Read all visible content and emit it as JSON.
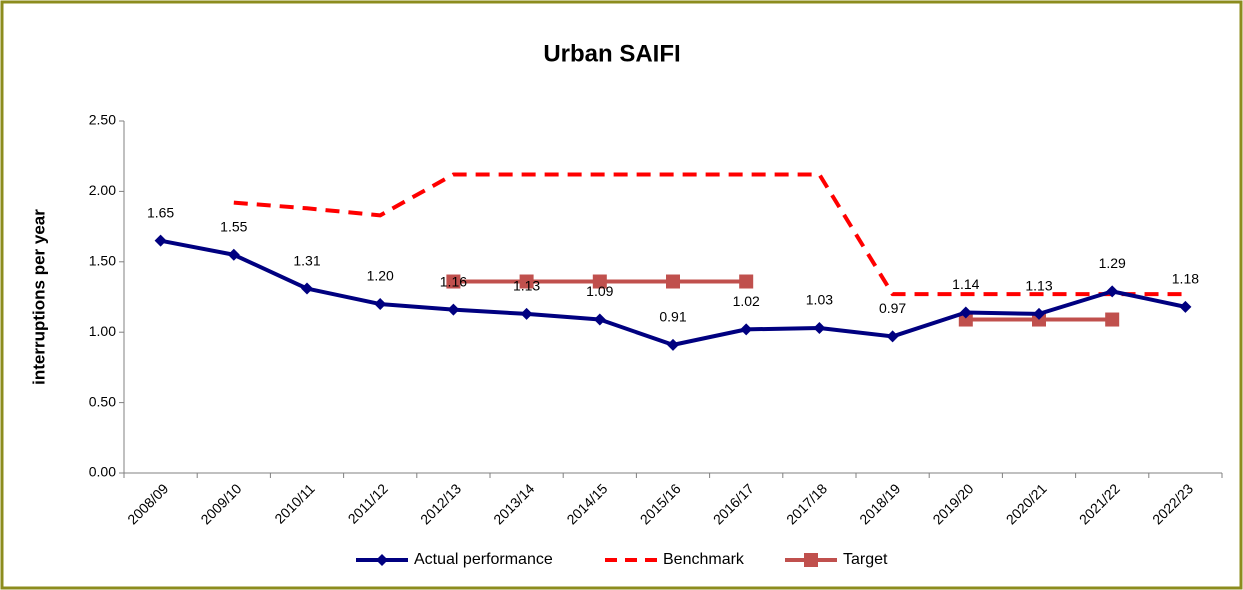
{
  "chart_data": {
    "type": "line",
    "title": "Urban SAIFI",
    "y_label": "interruptions per year",
    "categories": [
      "2008/09",
      "2009/10",
      "2010/11",
      "2011/12",
      "2012/13",
      "2013/14",
      "2014/15",
      "2015/16",
      "2016/17",
      "2017/18",
      "2018/19",
      "2019/20",
      "2020/21",
      "2021/22",
      "2022/23"
    ],
    "series": [
      {
        "name": "Actual performance",
        "color": "#000080",
        "style": "solid",
        "marker": "diamond",
        "values": [
          1.65,
          1.55,
          1.31,
          1.2,
          1.16,
          1.13,
          1.09,
          0.91,
          1.02,
          1.03,
          0.97,
          1.14,
          1.13,
          1.29,
          1.18
        ],
        "value_labels": [
          "1.65",
          "1.55",
          "1.31",
          "1.20",
          "1.16",
          "1.13",
          "1.09",
          "0.91",
          "1.02",
          "1.03",
          "0.97",
          "1.14",
          "1.13",
          "1.29",
          "1.18"
        ]
      },
      {
        "name": "Benchmark",
        "color": "#ff0000",
        "style": "dashed",
        "marker": "none",
        "values": [
          null,
          1.92,
          1.88,
          1.83,
          2.12,
          2.12,
          2.12,
          2.12,
          2.12,
          2.12,
          1.27,
          1.27,
          1.27,
          1.27,
          1.27
        ]
      },
      {
        "name": "Target",
        "color": "#c0504d",
        "style": "solid",
        "marker": "square",
        "values": [
          null,
          null,
          null,
          null,
          1.36,
          1.36,
          1.36,
          1.36,
          1.36,
          null,
          null,
          1.09,
          1.09,
          1.09,
          null
        ]
      }
    ],
    "ylim": [
      0,
      2.5
    ],
    "yticks": [
      {
        "value": 0,
        "label": "0.00"
      },
      {
        "value": 0.5,
        "label": "0.50"
      },
      {
        "value": 1,
        "label": "1.00"
      },
      {
        "value": 1.5,
        "label": "1.50"
      },
      {
        "value": 2,
        "label": "2.00"
      },
      {
        "value": 2.5,
        "label": "2.50"
      }
    ],
    "grid": false,
    "legend": "bottom"
  }
}
